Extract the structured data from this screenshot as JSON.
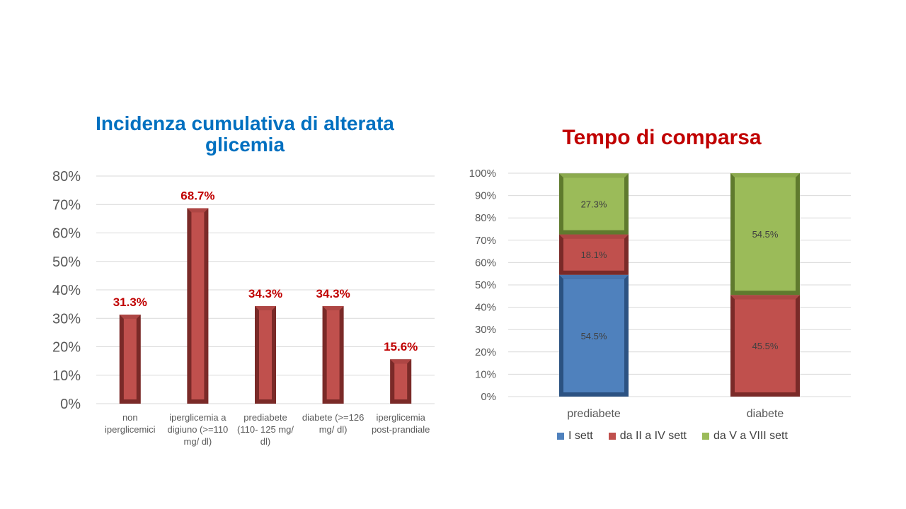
{
  "chart_data": [
    {
      "type": "bar",
      "title": "Incidenza cumulativa di alterata glicemia",
      "categories": [
        [
          "non",
          "iperglicemici"
        ],
        [
          "iperglicemia a",
          "digiuno (>=110",
          "mg/ dl)"
        ],
        [
          "prediabete",
          "(110- 125 mg/",
          "dl)"
        ],
        [
          "diabete (>=126",
          "mg/ dl)"
        ],
        [
          "iperglicemia",
          "post-prandiale"
        ]
      ],
      "values": [
        31.3,
        68.7,
        34.3,
        34.3,
        15.6
      ],
      "data_labels": [
        "31.3%",
        "68.7%",
        "34.3%",
        "34.3%",
        "15.6%"
      ],
      "ylim": [
        0,
        80
      ],
      "yticks": [
        "0%",
        "10%",
        "20%",
        "30%",
        "40%",
        "50%",
        "60%",
        "70%",
        "80%"
      ],
      "grid": true,
      "colors": {
        "bar": "#c0504d",
        "bar_dark": "#7a2a28",
        "bar_light": "#d9706d",
        "label": "#c00000"
      }
    },
    {
      "type": "bar",
      "stacked": true,
      "title": "Tempo di comparsa",
      "categories": [
        "prediabete",
        "diabete"
      ],
      "series": [
        {
          "name": "I sett",
          "values": [
            54.5,
            0
          ],
          "labels": [
            "54.5%",
            ""
          ],
          "color": "#4f81bd",
          "dark": "#2c5282"
        },
        {
          "name": "da II a IV sett",
          "values": [
            18.1,
            45.5
          ],
          "labels": [
            "18.1%",
            "45.5%"
          ],
          "color": "#c0504d",
          "dark": "#7a2a28"
        },
        {
          "name": "da V a VIII sett",
          "values": [
            27.3,
            54.5
          ],
          "labels": [
            "27.3%",
            "54.5%"
          ],
          "color": "#9bbb59",
          "dark": "#5f7a2e"
        }
      ],
      "ylim": [
        0,
        100
      ],
      "yticks": [
        "0%",
        "10%",
        "20%",
        "30%",
        "40%",
        "50%",
        "60%",
        "70%",
        "80%",
        "90%",
        "100%"
      ],
      "grid": true,
      "legend": "bottom"
    }
  ]
}
